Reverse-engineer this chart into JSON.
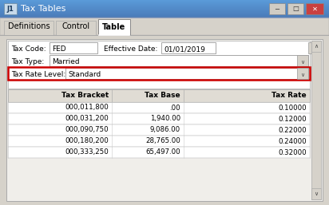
{
  "title": "Tax Tables",
  "title_icon": "J1",
  "tabs": [
    "Definitions",
    "Control",
    "Table"
  ],
  "active_tab": "Table",
  "window_bg": "#d6d2ca",
  "inner_bg": "#e8e4de",
  "panel_bg": "#ffffff",
  "title_bar_grad_top": "#6a9fd8",
  "title_bar_grad_bot": "#4a78b0",
  "tab_bg": "#d6d2ca",
  "close_btn_color": "#c94040",
  "field_border": "#999999",
  "highlight_color": "#cc0000",
  "table_header_bg": "#e0dcd4",
  "table_row_bg": "#ffffff",
  "table_border": "#b0b0b0",
  "scrollbar_bg": "#d6d2ca",
  "table_headers": [
    "Tax Bracket",
    "Tax Base",
    "Tax Rate"
  ],
  "table_rows": [
    [
      "000,011,800",
      ".00",
      "0.10000"
    ],
    [
      "000,031,200",
      "1,940.00",
      "0.12000"
    ],
    [
      "000,090,750",
      "9,086.00",
      "0.22000"
    ],
    [
      "000,180,200",
      "28,765.00",
      "0.24000"
    ],
    [
      "000,333,250",
      "65,497.00",
      "0.32000"
    ]
  ]
}
